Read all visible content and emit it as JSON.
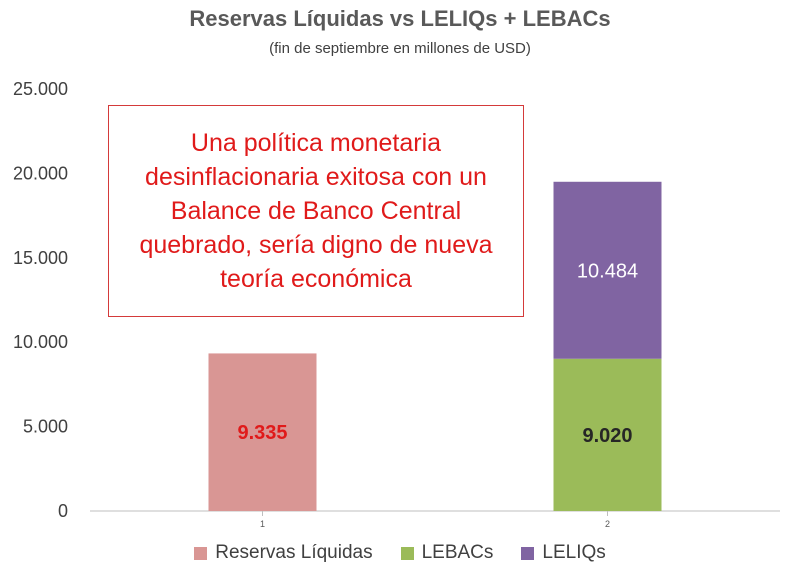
{
  "chart_data": {
    "type": "bar",
    "stacked": true,
    "title": "Reservas Líquidas vs LELIQs + LEBACs",
    "subtitle": "(fin de septiembre en millones de USD)",
    "categories": [
      "1",
      "2"
    ],
    "ylim": [
      0,
      25000
    ],
    "yticks": [
      0,
      5000,
      10000,
      15000,
      20000,
      25000
    ],
    "ytick_labels": [
      "0",
      "5.000",
      "10.000",
      "15.000",
      "20.000",
      "25.000"
    ],
    "grid": false,
    "series": [
      {
        "name": "Reservas Líquidas",
        "color": "#d99694",
        "values": [
          9335,
          null
        ],
        "labels": [
          "9.335",
          null
        ],
        "label_color": "#e01a1a"
      },
      {
        "name": "LEBACs",
        "color": "#9bbb59",
        "values": [
          null,
          9020
        ],
        "labels": [
          null,
          "9.020"
        ],
        "label_color": "#262626"
      },
      {
        "name": "LELIQs",
        "color": "#8064a2",
        "values": [
          null,
          10484
        ],
        "labels": [
          null,
          "10.484"
        ],
        "label_color": "#ffffff"
      }
    ],
    "legend_position": "bottom",
    "annotation": "Una política monetaria desinflacionaria exitosa con un Balance de Banco Central quebrado, sería digno de nueva teoría económica"
  }
}
